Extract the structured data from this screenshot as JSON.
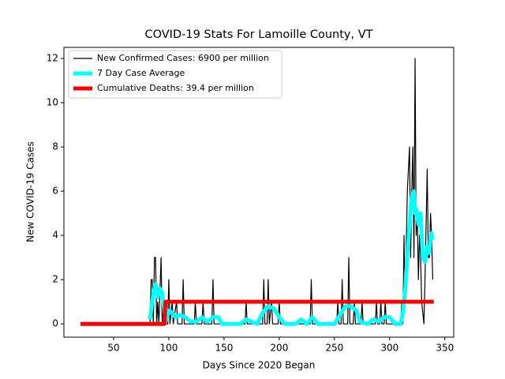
{
  "chart_data": {
    "type": "line",
    "title": "COVID-19 Stats For Lamoille County, VT",
    "xlabel": "Days Since 2020 Began",
    "ylabel": "New COVID-19 Cases",
    "xlim": [
      5,
      358
    ],
    "ylim": [
      -0.6,
      12.5
    ],
    "xticks": [
      50,
      100,
      150,
      200,
      250,
      300,
      350
    ],
    "yticks": [
      0,
      2,
      4,
      6,
      8,
      10,
      12
    ],
    "legend": "upper left",
    "series": [
      {
        "name": "New Confirmed Cases: 6900 per million",
        "color": "#000000",
        "x": [
          83,
          84,
          85,
          86,
          87,
          88,
          89,
          90,
          91,
          93,
          94,
          96,
          97,
          99,
          100,
          101,
          103,
          104,
          107,
          108,
          112,
          113,
          114,
          123,
          124,
          125,
          130,
          131,
          132,
          139,
          140,
          141,
          169,
          170,
          171,
          185,
          186,
          187,
          189,
          190,
          191,
          193,
          194,
          199,
          200,
          201,
          228,
          229,
          230,
          252,
          253,
          254,
          256,
          257,
          258,
          262,
          263,
          264,
          267,
          268,
          269,
          274,
          275,
          276,
          287,
          288,
          289,
          291,
          292,
          293,
          295,
          296,
          297,
          310,
          311,
          312,
          313,
          314,
          316,
          318,
          319,
          320,
          321,
          322,
          323,
          324,
          325,
          326,
          327,
          328,
          329,
          331,
          332,
          334,
          335,
          336,
          337,
          338,
          339
        ],
        "values": [
          0,
          2,
          2,
          0,
          3,
          3,
          0,
          1,
          0,
          3,
          0,
          1,
          0,
          0,
          2,
          0,
          1,
          0,
          1,
          0,
          0,
          2,
          0,
          0,
          1,
          0,
          0,
          1,
          0,
          0,
          2,
          0,
          0,
          1,
          0,
          0,
          2,
          0,
          0,
          2,
          0,
          1,
          0,
          0,
          1,
          0,
          0,
          2,
          0,
          0,
          1,
          0,
          0,
          2,
          0,
          0,
          3,
          0,
          0,
          1,
          0,
          0,
          1,
          0,
          0,
          1,
          0,
          0,
          1,
          0,
          0,
          1,
          0,
          0,
          1,
          0,
          4,
          1,
          6,
          8,
          3,
          6,
          8,
          3,
          12,
          4,
          5,
          2,
          4,
          3,
          1,
          0,
          2,
          7,
          3,
          3,
          5,
          4,
          2
        ]
      },
      {
        "name": "7 Day Case Average",
        "color": "#00ffff",
        "x": [
          83,
          86,
          88,
          90,
          92,
          94,
          96,
          98,
          100,
          103,
          106,
          110,
          115,
          120,
          125,
          130,
          135,
          140,
          145,
          148,
          165,
          170,
          175,
          180,
          185,
          190,
          195,
          200,
          205,
          215,
          220,
          225,
          230,
          235,
          250,
          255,
          260,
          265,
          270,
          273,
          280,
          285,
          290,
          295,
          300,
          305,
          310,
          312,
          314,
          316,
          318,
          320,
          322,
          323,
          324,
          326,
          328,
          330,
          332,
          334,
          336,
          337,
          338,
          339
        ],
        "values": [
          0.2,
          1.4,
          1.8,
          1.2,
          1.6,
          1.4,
          0.6,
          0.2,
          0.6,
          0.5,
          0.3,
          0.4,
          0.3,
          0.1,
          0.1,
          0.3,
          0.1,
          0.3,
          0.3,
          0,
          0,
          0.2,
          0.1,
          0,
          0.5,
          0.8,
          0.7,
          0.3,
          0,
          0,
          0.2,
          0,
          0.3,
          0,
          0,
          0.4,
          0.8,
          0.8,
          0.6,
          0.1,
          0,
          0.2,
          0.1,
          0.3,
          0.3,
          0,
          0,
          0.5,
          1.5,
          3,
          4.5,
          5.8,
          6,
          5,
          5.2,
          4.5,
          5,
          3,
          2.8,
          3.5,
          3.2,
          4,
          4.1,
          3.8
        ]
      },
      {
        "name": "Cumulative Deaths: 39.4 per million",
        "color": "#ff0000",
        "x": [
          20,
          96,
          97,
          340
        ],
        "values": [
          0,
          0,
          1,
          1
        ]
      }
    ]
  }
}
